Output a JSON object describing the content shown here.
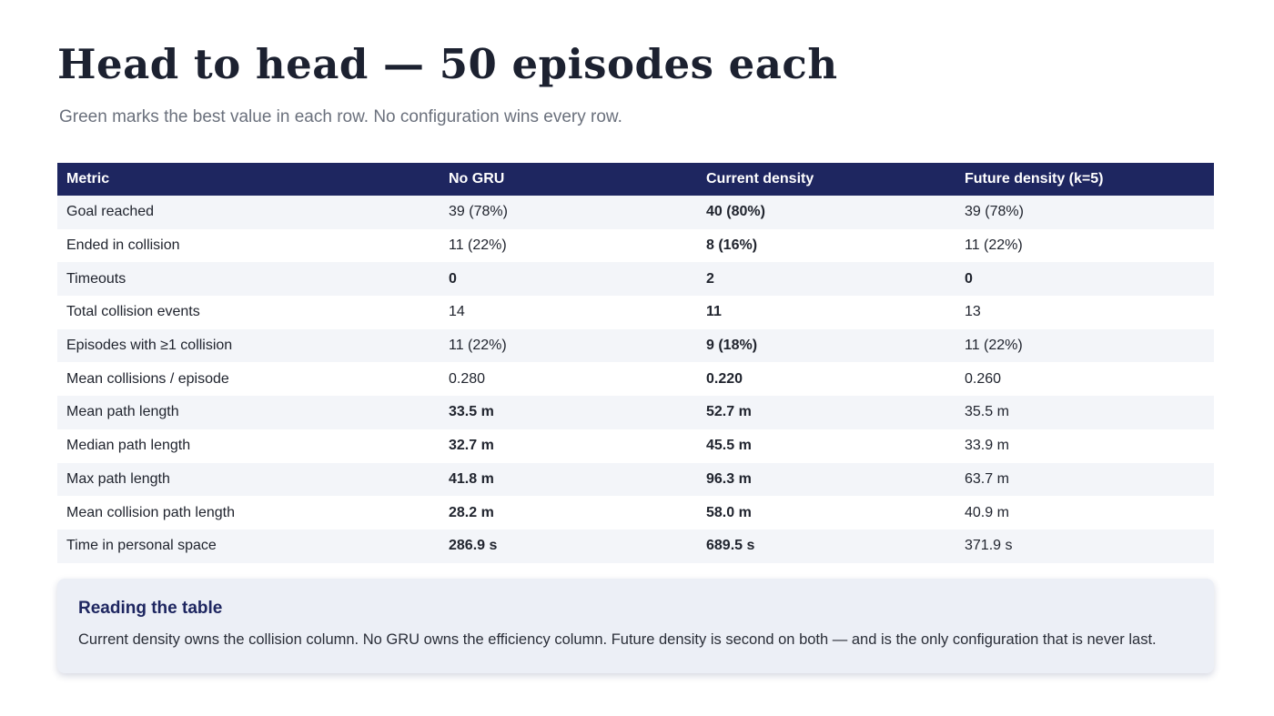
{
  "title": "Head to head — 50 episodes each",
  "subtitle": "Green marks the best value in each row. No configuration wins every row.",
  "table": {
    "headers": [
      "Metric",
      "No GRU",
      "Current density",
      "Future density (k=5)"
    ],
    "rows": [
      {
        "metric": "Goal reached",
        "cells": [
          {
            "value": "39 (78%)",
            "mark": ""
          },
          {
            "value": "40 (80%)",
            "mark": "best"
          },
          {
            "value": "39 (78%)",
            "mark": ""
          }
        ]
      },
      {
        "metric": "Ended in collision",
        "cells": [
          {
            "value": "11 (22%)",
            "mark": ""
          },
          {
            "value": "8 (16%)",
            "mark": "best"
          },
          {
            "value": "11 (22%)",
            "mark": ""
          }
        ]
      },
      {
        "metric": "Timeouts",
        "cells": [
          {
            "value": "0",
            "mark": "best"
          },
          {
            "value": "2",
            "mark": "worst"
          },
          {
            "value": "0",
            "mark": "best"
          }
        ]
      },
      {
        "metric": "Total collision events",
        "cells": [
          {
            "value": "14",
            "mark": ""
          },
          {
            "value": "11",
            "mark": "best"
          },
          {
            "value": "13",
            "mark": ""
          }
        ]
      },
      {
        "metric": "Episodes with ≥1 collision",
        "cells": [
          {
            "value": "11 (22%)",
            "mark": ""
          },
          {
            "value": "9 (18%)",
            "mark": "best"
          },
          {
            "value": "11 (22%)",
            "mark": ""
          }
        ]
      },
      {
        "metric": "Mean collisions / episode",
        "cells": [
          {
            "value": "0.280",
            "mark": ""
          },
          {
            "value": "0.220",
            "mark": "best"
          },
          {
            "value": "0.260",
            "mark": ""
          }
        ]
      },
      {
        "metric": "Mean path length",
        "cells": [
          {
            "value": "33.5 m",
            "mark": "best"
          },
          {
            "value": "52.7 m",
            "mark": "worst"
          },
          {
            "value": "35.5 m",
            "mark": ""
          }
        ]
      },
      {
        "metric": "Median path length",
        "cells": [
          {
            "value": "32.7 m",
            "mark": "best"
          },
          {
            "value": "45.5 m",
            "mark": "worst"
          },
          {
            "value": "33.9 m",
            "mark": ""
          }
        ]
      },
      {
        "metric": "Max path length",
        "cells": [
          {
            "value": "41.8 m",
            "mark": "best"
          },
          {
            "value": "96.3 m",
            "mark": "worst"
          },
          {
            "value": "63.7 m",
            "mark": ""
          }
        ]
      },
      {
        "metric": "Mean collision path length",
        "cells": [
          {
            "value": "28.2 m",
            "mark": "best"
          },
          {
            "value": "58.0 m",
            "mark": "worst"
          },
          {
            "value": "40.9 m",
            "mark": ""
          }
        ]
      },
      {
        "metric": "Time in personal space",
        "cells": [
          {
            "value": "286.9 s",
            "mark": "best"
          },
          {
            "value": "689.5 s",
            "mark": "worst"
          },
          {
            "value": "371.9 s",
            "mark": ""
          }
        ]
      }
    ]
  },
  "note": {
    "title": "Reading the table",
    "body": "Current density owns the collision column. No GRU owns the efficiency column. Future density is second on both — and is the only configuration that is never last."
  },
  "colors": {
    "header_bg": "#1e2660",
    "best": "#2e7a4a",
    "worst": "#b35a2c",
    "row_alt": "#f3f5f9",
    "note_bg": "#eceff6"
  }
}
